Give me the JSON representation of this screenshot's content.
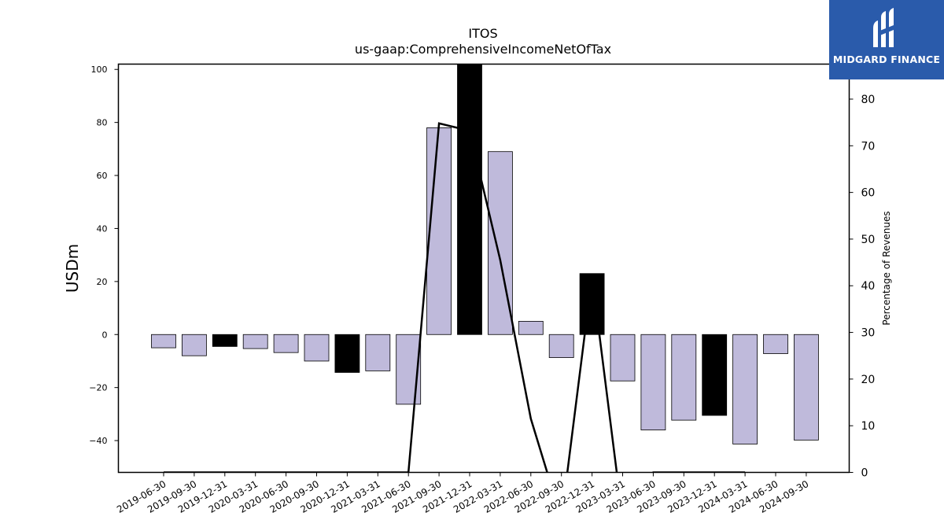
{
  "chart_data": {
    "type": "bar",
    "title": "ITOS",
    "subtitle": "us-gaap:ComprehensiveIncomeNetOfTax",
    "ylabel": "USDm",
    "y2label": "Percentage of Revenues",
    "ylim": [
      -52,
      102
    ],
    "y2lim": [
      0,
      87.5
    ],
    "yticks": [
      -40,
      -20,
      0,
      20,
      40,
      60,
      80,
      100
    ],
    "y2ticks": [
      0,
      10,
      20,
      30,
      40,
      50,
      60,
      70,
      80
    ],
    "categories": [
      "2019-06-30",
      "2019-09-30",
      "2019-12-31",
      "2020-03-31",
      "2020-06-30",
      "2020-09-30",
      "2020-12-31",
      "2021-03-31",
      "2021-06-30",
      "2021-09-30",
      "2021-12-31",
      "2022-03-31",
      "2022-06-30",
      "2022-09-30",
      "2022-12-31",
      "2023-03-31",
      "2023-06-30",
      "2023-09-30",
      "2023-12-31",
      "2024-03-31",
      "2024-06-30",
      "2024-09-30"
    ],
    "values": [
      -5,
      -8,
      -4.5,
      -5.3,
      -6.8,
      -10,
      -14.3,
      -13.7,
      -26.3,
      78,
      108,
      69,
      5,
      -8.7,
      23,
      -17.5,
      -36,
      -32.3,
      -30.5,
      -41.3,
      -7.2,
      -39.8
    ],
    "highlight": [
      false,
      false,
      true,
      false,
      false,
      false,
      true,
      false,
      false,
      false,
      true,
      false,
      false,
      false,
      true,
      false,
      false,
      false,
      true,
      false,
      false,
      false
    ],
    "line_series": {
      "name": "Percentage of Revenues",
      "x": [
        "2019-06-30",
        "2019-09-30",
        "2019-12-31",
        "2020-03-31",
        "2020-06-30",
        "2020-09-30",
        "2020-12-31",
        "2021-03-31",
        "2021-06-30",
        "2021-09-30",
        "2021-12-31",
        "2022-03-31",
        "2022-06-30",
        "2022-09-30",
        "2022-12-31",
        "2023-03-31",
        "2023-06-30",
        "2023-09-30",
        "2023-12-31",
        "2024-03-31",
        "2024-06-30",
        "2024-09-30"
      ],
      "values": [
        0,
        0,
        0,
        0,
        0,
        0,
        0,
        0,
        0,
        74.8,
        73.2,
        45.5,
        11.5,
        -10,
        42,
        -10,
        0,
        0,
        0,
        0,
        null,
        0
      ]
    },
    "colors": {
      "bar": "#bfbadb",
      "bar_highlight": "#000000",
      "line": "#000000"
    },
    "grid": false,
    "legend": "none"
  },
  "logo": {
    "text": "MIDGARD FINANCE",
    "icon": "midgard-logo-icon"
  }
}
